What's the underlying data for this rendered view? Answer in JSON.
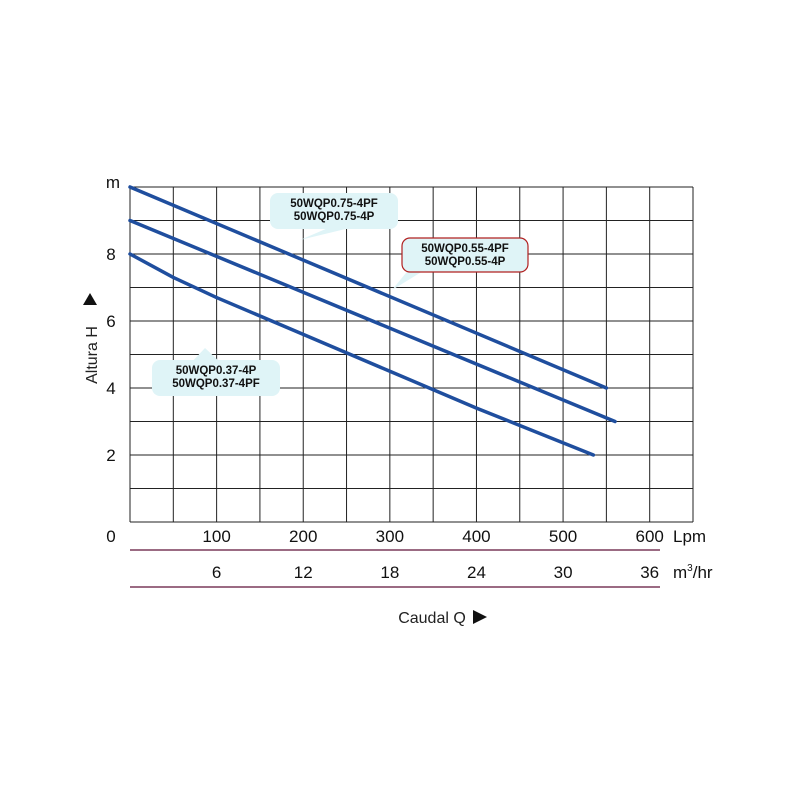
{
  "chart_data": {
    "type": "line",
    "y_unit": "m",
    "ylabel": "Altura  H",
    "xlabel": "Caudal  Q",
    "x_unit_primary": "Lpm",
    "x_unit_secondary": "m³/hr",
    "x_unit_secondary_base": "m",
    "x_unit_secondary_sup": "3",
    "x_unit_secondary_tail": "/hr",
    "xlim": [
      0,
      650
    ],
    "ylim": [
      0,
      10
    ],
    "grid": true,
    "x_ticks": [
      "0",
      "100",
      "200",
      "300",
      "400",
      "500",
      "600"
    ],
    "x_ticks_secondary": [
      "6",
      "12",
      "18",
      "24",
      "30",
      "36"
    ],
    "y_ticks": [
      "2",
      "4",
      "6",
      "8"
    ],
    "series": [
      {
        "name_lines": [
          "50WQP0.75-4PF",
          "50WQP0.75-4P"
        ],
        "color": "#1f4e9e",
        "x": [
          0,
          550
        ],
        "y": [
          10.0,
          4.0
        ]
      },
      {
        "name_lines": [
          "50WQP0.55-4PF",
          "50WQP0.55-4P"
        ],
        "color": "#1f4e9e",
        "x": [
          0,
          560
        ],
        "y": [
          9.0,
          3.0
        ]
      },
      {
        "name_lines": [
          "50WQP0.37-4P",
          "50WQP0.37-4PF"
        ],
        "color": "#1f4e9e",
        "x": [
          0,
          50,
          100,
          200,
          300,
          400,
          535
        ],
        "y": [
          8.0,
          7.3,
          6.7,
          5.6,
          4.5,
          3.4,
          2.0
        ]
      }
    ]
  }
}
